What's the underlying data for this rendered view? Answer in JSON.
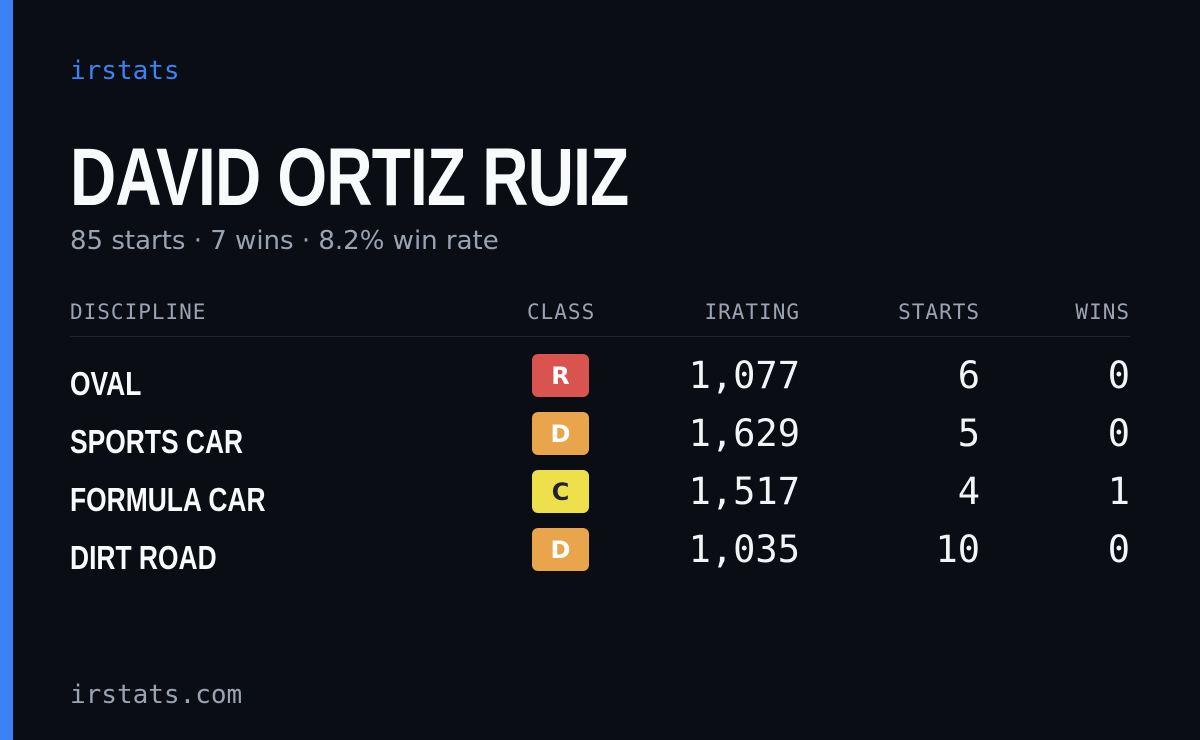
{
  "brand": "irstats",
  "driver": {
    "name": "DAVID ORTIZ RUIZ",
    "summary": "85 starts · 7 wins · 8.2% win rate"
  },
  "table": {
    "headers": {
      "discipline": "DISCIPLINE",
      "class": "CLASS",
      "irating": "IRATING",
      "starts": "STARTS",
      "wins": "WINS"
    },
    "rows": [
      {
        "discipline": "OVAL",
        "class": "R",
        "class_bg": "#d9534f",
        "class_fg": "#ffffff",
        "irating": "1,077",
        "starts": "6",
        "wins": "0"
      },
      {
        "discipline": "SPORTS CAR",
        "class": "D",
        "class_bg": "#e8a54b",
        "class_fg": "#ffffff",
        "irating": "1,629",
        "starts": "5",
        "wins": "0"
      },
      {
        "discipline": "FORMULA CAR",
        "class": "C",
        "class_bg": "#ede04a",
        "class_fg": "#1f2430",
        "irating": "1,517",
        "starts": "4",
        "wins": "1"
      },
      {
        "discipline": "DIRT ROAD",
        "class": "D",
        "class_bg": "#e8a54b",
        "class_fg": "#ffffff",
        "irating": "1,035",
        "starts": "10",
        "wins": "0"
      }
    ]
  },
  "footer": "irstats.com",
  "colors": {
    "background": "#0b0d14",
    "accent": "#3b82f6",
    "muted": "#9aa3b2",
    "text": "#f8fafc"
  }
}
